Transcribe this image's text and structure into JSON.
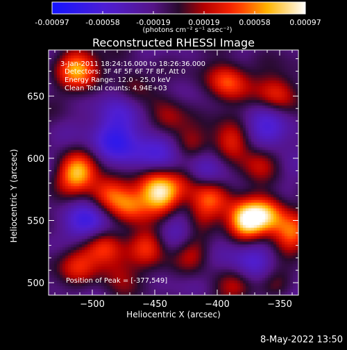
{
  "chart_data": {
    "type": "heatmap",
    "title": "Reconstructed RHESSI Image",
    "xlabel": "Heliocentric X (arcsec)",
    "ylabel": "Heliocentric Y (arcsec)",
    "xlim": [
      -535,
      -335
    ],
    "ylim": [
      490,
      687
    ],
    "xticks": [
      -500,
      -450,
      -400,
      -350
    ],
    "yticks": [
      500,
      550,
      600,
      650
    ],
    "colorbar": {
      "colormap": "blue-purple-red-yellow-white",
      "range": [
        -0.00097,
        0.00097
      ],
      "ticks": [
        "-0.00097",
        "-0.00058",
        "-0.00019",
        "0.00019",
        "0.00058",
        "0.00097"
      ],
      "units_label": "(photons cm⁻² s⁻¹ asec⁻²)"
    },
    "annotations": [
      "3-Jan-2011 18:24:16.000 to 18:26:36.000",
      "Detectors: 3F 4F 5F 6F 7F 8F, Att 0",
      "Energy Range: 12.0 - 25.0 keV",
      "Clean     Total counts: 4.94E+03",
      "Position of Peak = [-377,549]"
    ],
    "peak": {
      "x": -377,
      "y": 549
    },
    "sources": [
      {
        "x": -512,
        "y": 672,
        "amp": 0.75
      },
      {
        "x": -468,
        "y": 658,
        "amp": 0.55
      },
      {
        "x": -440,
        "y": 630,
        "amp": 0.45
      },
      {
        "x": -420,
        "y": 612,
        "amp": 0.35
      },
      {
        "x": -392,
        "y": 662,
        "amp": 0.6
      },
      {
        "x": -352,
        "y": 652,
        "amp": 0.5
      },
      {
        "x": -388,
        "y": 612,
        "amp": 0.5
      },
      {
        "x": -366,
        "y": 598,
        "amp": 0.35
      },
      {
        "x": -512,
        "y": 588,
        "amp": 0.75
      },
      {
        "x": -488,
        "y": 572,
        "amp": 0.55
      },
      {
        "x": -470,
        "y": 562,
        "amp": 0.5
      },
      {
        "x": -450,
        "y": 578,
        "amp": 0.45
      },
      {
        "x": -443,
        "y": 567,
        "amp": 0.6
      },
      {
        "x": -425,
        "y": 583,
        "amp": 0.4
      },
      {
        "x": -406,
        "y": 570,
        "amp": 0.5
      },
      {
        "x": -415,
        "y": 552,
        "amp": 0.35
      },
      {
        "x": -377,
        "y": 549,
        "amp": 1.0
      },
      {
        "x": -360,
        "y": 555,
        "amp": 0.65
      },
      {
        "x": -340,
        "y": 538,
        "amp": 0.55
      },
      {
        "x": -420,
        "y": 525,
        "amp": 0.5
      },
      {
        "x": -456,
        "y": 530,
        "amp": 0.5
      },
      {
        "x": -490,
        "y": 528,
        "amp": 0.5
      },
      {
        "x": -512,
        "y": 515,
        "amp": 0.4
      },
      {
        "x": -480,
        "y": 508,
        "amp": 0.3
      },
      {
        "x": -352,
        "y": 500,
        "amp": 0.35
      },
      {
        "x": -384,
        "y": 495,
        "amp": 0.3
      }
    ],
    "troughs": [
      {
        "x": -480,
        "y": 615,
        "amp": 0.55
      },
      {
        "x": -440,
        "y": 605,
        "amp": 0.4
      },
      {
        "x": -410,
        "y": 590,
        "amp": 0.35
      },
      {
        "x": -500,
        "y": 548,
        "amp": 0.45
      },
      {
        "x": -425,
        "y": 540,
        "amp": 0.45
      },
      {
        "x": -372,
        "y": 520,
        "amp": 0.4
      },
      {
        "x": -358,
        "y": 620,
        "amp": 0.4
      },
      {
        "x": -470,
        "y": 650,
        "amp": 0.35
      },
      {
        "x": -345,
        "y": 480,
        "amp": 0.3
      }
    ]
  }
}
